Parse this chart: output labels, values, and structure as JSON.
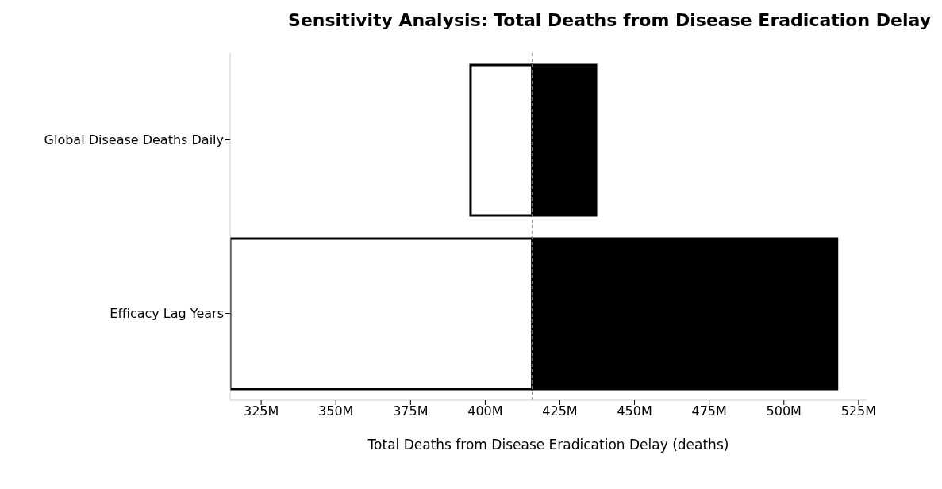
{
  "chart_data": {
    "type": "bar",
    "orientation": "horizontal",
    "title": "Sensitivity Analysis: Total Deaths from Disease Eradication Delay",
    "xlabel": "Total Deaths from Disease Eradication Delay (deaths)",
    "categories": [
      "Global Disease Deaths Daily",
      "Efficacy Lag Years"
    ],
    "series": [
      {
        "color": "#ffffff",
        "base": [
          395.1,
          314.6
        ],
        "values": [
          20.7,
          101.2
        ]
      },
      {
        "color": "#000000",
        "base": [
          415.8,
          415.8
        ],
        "values": [
          21.3,
          102.0
        ]
      }
    ],
    "xlim": [
      314.6,
      527.7
    ],
    "xticks": [
      {
        "value": 325,
        "label": "325M"
      },
      {
        "value": 350,
        "label": "350M"
      },
      {
        "value": 375,
        "label": "375M"
      },
      {
        "value": 400,
        "label": "400M"
      },
      {
        "value": 425,
        "label": "425M"
      },
      {
        "value": 450,
        "label": "450M"
      },
      {
        "value": 475,
        "label": "475M"
      },
      {
        "value": 500,
        "label": "500M"
      },
      {
        "value": 525,
        "label": "525M"
      }
    ],
    "ref_lines": [
      {
        "axis": "x",
        "value": 415.8,
        "color": "#888888",
        "line_style": "dashed"
      }
    ]
  }
}
